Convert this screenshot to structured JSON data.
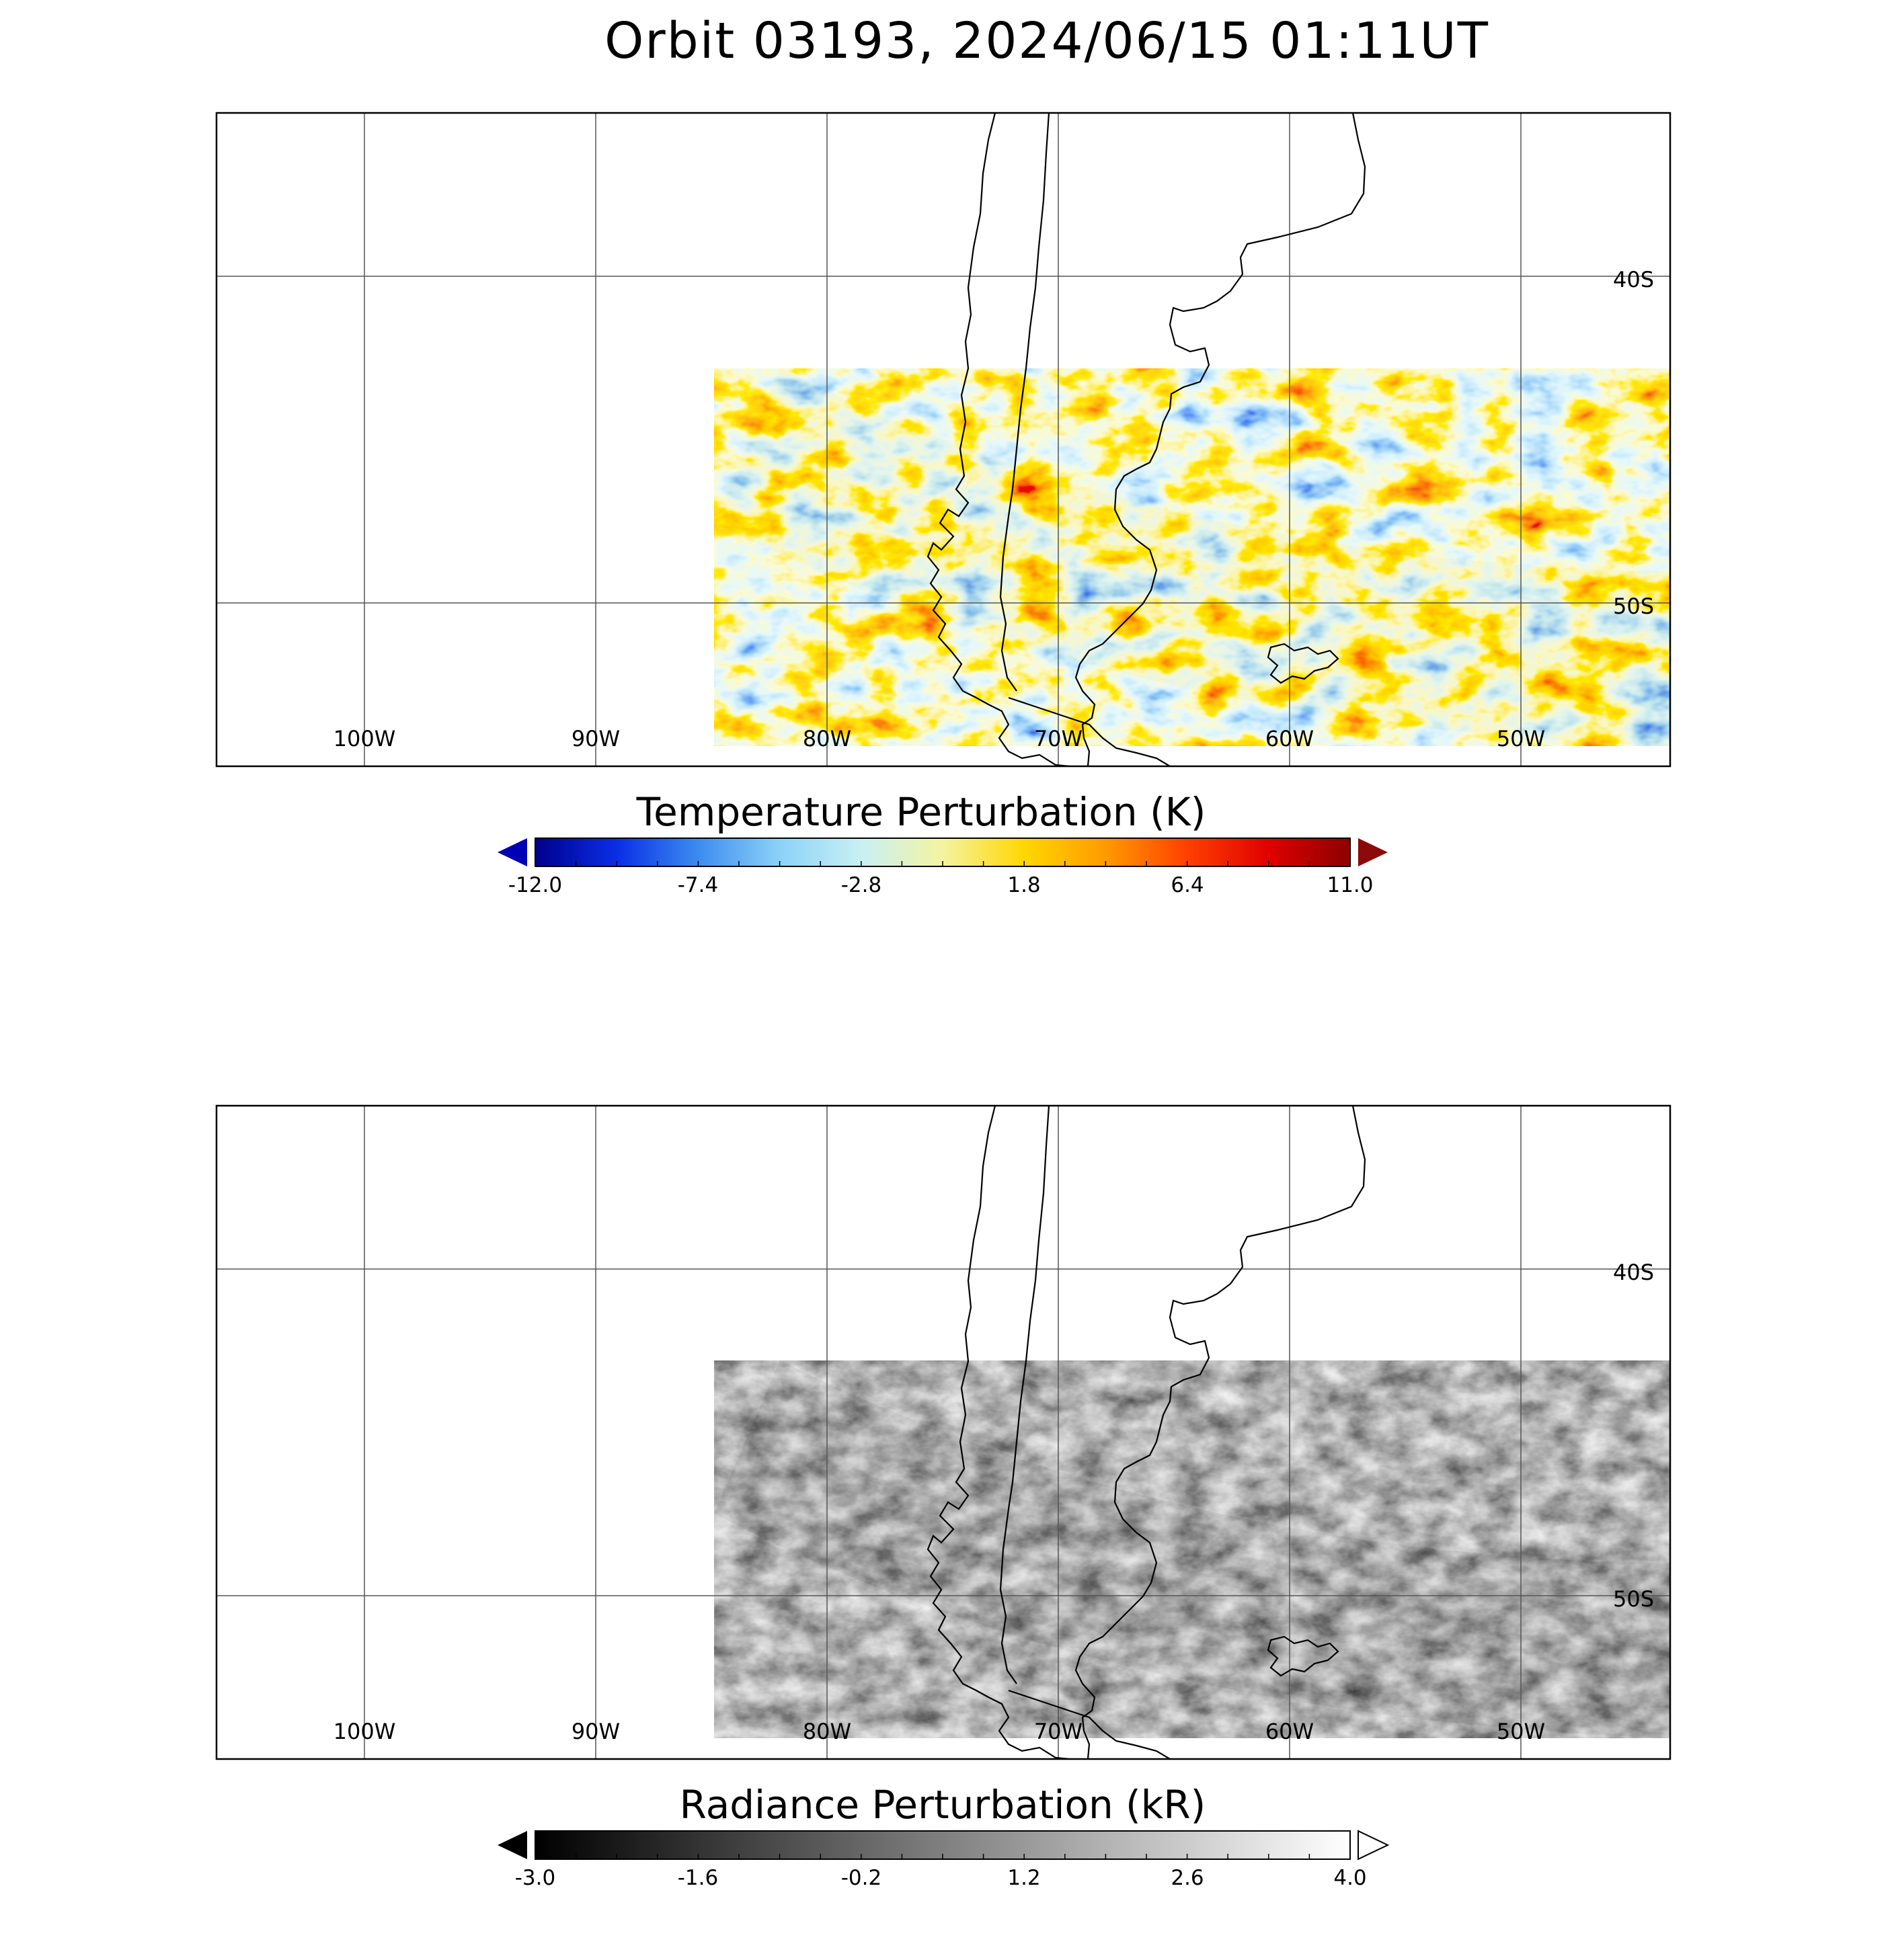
{
  "title": "Orbit 03193, 2024/06/15 01:11UT",
  "panels": [
    {
      "id": "temperature",
      "lon_labels": [
        "100W",
        "90W",
        "80W",
        "70W",
        "60W",
        "50W"
      ],
      "lat_labels": [
        "40S",
        "50S"
      ],
      "colorbar": {
        "label": "Temperature Perturbation (K)",
        "ticks": [
          "-12.0",
          "-7.4",
          "-2.8",
          "1.8",
          "6.4",
          "11.0"
        ],
        "range": [
          -12.0,
          11.0
        ],
        "colors": [
          "#00008c",
          "#0a2ee6",
          "#3c8cf0",
          "#8cd2f8",
          "#c8f0f4",
          "#f4f4a0",
          "#ffd700",
          "#ff9a00",
          "#ff4000",
          "#e00000",
          "#8c0000"
        ],
        "end_left": "#0000b4",
        "end_right": "#8c0a0a"
      }
    },
    {
      "id": "radiance",
      "lon_labels": [
        "100W",
        "90W",
        "80W",
        "70W",
        "60W",
        "50W"
      ],
      "lat_labels": [
        "40S",
        "50S"
      ],
      "colorbar": {
        "label": "Radiance Perturbation (kR)",
        "ticks": [
          "-3.0",
          "-1.6",
          "-0.2",
          "1.2",
          "2.6",
          "4.0"
        ],
        "range": [
          -3.0,
          4.0
        ],
        "colors": [
          "#000000",
          "#ffffff"
        ],
        "end_left": "#000000",
        "end_right": "#ffffff"
      }
    }
  ]
}
